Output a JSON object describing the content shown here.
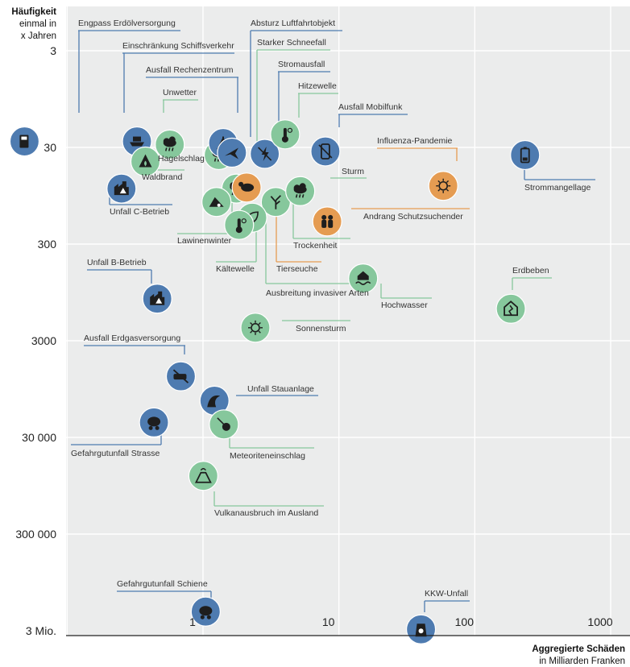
{
  "chart_data": {
    "type": "scatter",
    "title": "",
    "y_axis": {
      "label_lines": [
        "Häufigkeit",
        "einmal in",
        "x Jahren"
      ],
      "scale": "log",
      "ticks": [
        {
          "value": 3,
          "label": "3"
        },
        {
          "value": 30,
          "label": "30"
        },
        {
          "value": 300,
          "label": "300"
        },
        {
          "value": 3000,
          "label": "3000"
        },
        {
          "value": 30000,
          "label": "30 000"
        },
        {
          "value": 300000,
          "label": "300 000"
        },
        {
          "value": 3000000,
          "label": "3 Mio."
        }
      ]
    },
    "x_axis": {
      "label_lines": [
        "Aggregierte Schäden",
        "in Milliarden Franken"
      ],
      "scale": "log",
      "ticks": [
        {
          "value": 1,
          "label": "1"
        },
        {
          "value": 10,
          "label": "10"
        },
        {
          "value": 100,
          "label": "100"
        },
        {
          "value": 1000,
          "label": "1000"
        }
      ]
    },
    "grid": true,
    "colors": {
      "blue": "#4e7bb0",
      "green": "#86c79c",
      "orange": "#e59c52",
      "background": "#ebecec",
      "icon": "#1e1e1e"
    },
    "points": [
      {
        "name": "Engpass Erdölversorgung",
        "x": 0.058,
        "y": 26,
        "color": "blue",
        "icon": "fuel-pump-icon"
      },
      {
        "name": "Einschränkung Schiffsverkehr",
        "x": 0.39,
        "y": 26,
        "color": "blue",
        "icon": "ship-icon"
      },
      {
        "name": "Waldbrand",
        "x": 0.45,
        "y": 42,
        "color": "green",
        "icon": "forest-fire-icon"
      },
      {
        "name": "Unwetter",
        "x": 0.68,
        "y": 28,
        "color": "green",
        "icon": "storm-cloud-icon"
      },
      {
        "name": "Hagelschlag",
        "x": 1.56,
        "y": 36,
        "color": "green",
        "icon": "hail-icon"
      },
      {
        "name": "Ausfall Rechenzentrum",
        "x": 1.68,
        "y": 27,
        "color": "blue",
        "icon": "server-icon"
      },
      {
        "name": "Absturz Luftfahrtobjekt",
        "x": 1.95,
        "y": 34,
        "color": "blue",
        "icon": "plane-crash-icon"
      },
      {
        "name": "Stromausfall",
        "x": 3.4,
        "y": 35,
        "color": "blue",
        "icon": "power-outage-icon"
      },
      {
        "name": "Hitzewelle",
        "x": 4.8,
        "y": 22,
        "color": "green",
        "icon": "thermometer-sun-icon"
      },
      {
        "name": "Ausfall Mobilfunk",
        "x": 9.5,
        "y": 33,
        "color": "blue",
        "icon": "mobile-off-icon"
      },
      {
        "name": "Unfall C-Betrieb",
        "x": 0.3,
        "y": 80,
        "color": "blue",
        "icon": "chemical-plant-icon"
      },
      {
        "name": "Starker Schneefall",
        "x": 2.1,
        "y": 80,
        "color": "green",
        "icon": "snowfall-icon"
      },
      {
        "name": "Tierseuche",
        "x": 2.5,
        "y": 78,
        "color": "orange",
        "icon": "animal-disease-icon"
      },
      {
        "name": "Lawinenwinter",
        "x": 1.5,
        "y": 110,
        "color": "green",
        "icon": "avalanche-icon"
      },
      {
        "name": "Trockenheit",
        "x": 4.1,
        "y": 110,
        "color": "green",
        "icon": "dry-tree-icon"
      },
      {
        "name": "Sturm",
        "x": 6.2,
        "y": 85,
        "color": "green",
        "icon": "wind-cloud-icon"
      },
      {
        "name": "Ausbreitung invasiver Arten",
        "x": 2.75,
        "y": 160,
        "color": "green",
        "icon": "invasive-leaf-icon"
      },
      {
        "name": "Kältewelle",
        "x": 2.2,
        "y": 190,
        "color": "green",
        "icon": "thermometer-snow-icon"
      },
      {
        "name": "Influenza-Pandemie",
        "x": 70,
        "y": 75,
        "color": "orange",
        "icon": "virus-icon"
      },
      {
        "name": "Strommangellage",
        "x": 280,
        "y": 36,
        "color": "blue",
        "icon": "battery-low-icon"
      },
      {
        "name": "Andrang Schutzsuchender",
        "x": 9.8,
        "y": 175,
        "color": "orange",
        "icon": "refugees-icon"
      },
      {
        "name": "Unfall B-Betrieb",
        "x": 0.55,
        "y": 1100,
        "color": "blue",
        "icon": "bio-plant-icon"
      },
      {
        "name": "Hochwasser",
        "x": 18,
        "y": 680,
        "color": "green",
        "icon": "flood-house-icon"
      },
      {
        "name": "Erdbeben",
        "x": 220,
        "y": 1400,
        "color": "green",
        "icon": "earthquake-house-icon"
      },
      {
        "name": "Sonnensturm",
        "x": 2.9,
        "y": 2200,
        "color": "green",
        "icon": "sun-storm-icon"
      },
      {
        "name": "Ausfall Erdgasversorgung",
        "x": 0.82,
        "y": 7000,
        "color": "blue",
        "icon": "gas-off-icon"
      },
      {
        "name": "Unfall Stauanlage",
        "x": 1.45,
        "y": 12500,
        "color": "blue",
        "icon": "dam-wave-icon"
      },
      {
        "name": "Gefahrgutunfall Strasse",
        "x": 0.52,
        "y": 21000,
        "color": "blue",
        "icon": "tanker-truck-icon"
      },
      {
        "name": "Meteoriteneinschlag",
        "x": 1.7,
        "y": 22000,
        "color": "green",
        "icon": "meteorite-icon"
      },
      {
        "name": "Vulkanausbruch im Ausland",
        "x": 1.2,
        "y": 75000,
        "color": "green",
        "icon": "volcano-icon"
      },
      {
        "name": "Gefahrgutunfall Schiene",
        "x": 1.25,
        "y": 1900000,
        "color": "blue",
        "icon": "tank-wagon-icon"
      },
      {
        "name": "KKW-Unfall",
        "x": 48,
        "y": 2900000,
        "color": "blue",
        "icon": "nuclear-plant-icon"
      }
    ]
  }
}
